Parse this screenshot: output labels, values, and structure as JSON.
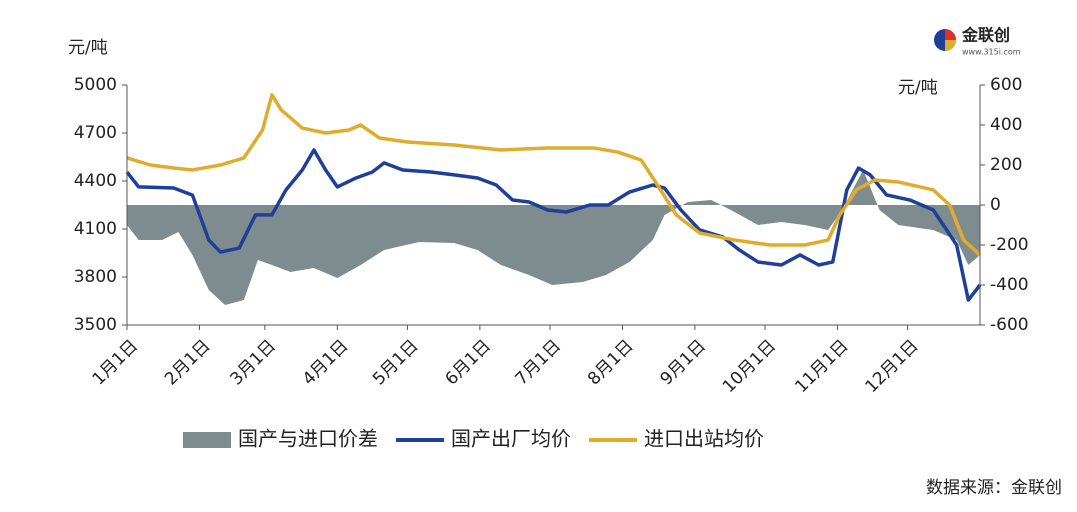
{
  "chart_data": {
    "type": "line",
    "ylabel": "元/吨",
    "y2label": "元/吨",
    "xlim": [
      0,
      365
    ],
    "xticks": [
      {
        "value": 0,
        "label": "1月1日"
      },
      {
        "value": 31,
        "label": "2月1日"
      },
      {
        "value": 59,
        "label": "3月1日"
      },
      {
        "value": 90,
        "label": "4月1日"
      },
      {
        "value": 120,
        "label": "5月1日"
      },
      {
        "value": 151,
        "label": "6月1日"
      },
      {
        "value": 181,
        "label": "7月1日"
      },
      {
        "value": 212,
        "label": "8月1日"
      },
      {
        "value": 243,
        "label": "9月1日"
      },
      {
        "value": 273,
        "label": "10月1日"
      },
      {
        "value": 304,
        "label": "11月1日"
      },
      {
        "value": 334,
        "label": "12月1日"
      }
    ],
    "ylim": [
      3500,
      5000
    ],
    "yticks": [
      3500,
      3800,
      4100,
      4400,
      4700,
      5000
    ],
    "y2lim": [
      -600,
      600
    ],
    "y2ticks": [
      -600,
      -400,
      -200,
      0,
      200,
      400,
      600
    ],
    "series": [
      {
        "name": "国产与进口价差",
        "color": "#7f8c8f",
        "axis": "y2",
        "kind": "area",
        "x": [
          0,
          5,
          15,
          22,
          28,
          35,
          42,
          50,
          56,
          62,
          70,
          80,
          90,
          100,
          110,
          125,
          140,
          150,
          160,
          172,
          182,
          195,
          205,
          215,
          225,
          230,
          240,
          250,
          260,
          270,
          280,
          290,
          300,
          306,
          315,
          322,
          330,
          345,
          355,
          360,
          365
        ],
        "values": [
          -100,
          -175,
          -175,
          -135,
          -250,
          -425,
          -500,
          -475,
          -275,
          -300,
          -335,
          -315,
          -365,
          -300,
          -225,
          -185,
          -190,
          -225,
          -300,
          -350,
          -400,
          -385,
          -350,
          -285,
          -175,
          -50,
          15,
          25,
          -35,
          -100,
          -85,
          -100,
          -125,
          -25,
          175,
          -25,
          -100,
          -125,
          -175,
          -300,
          -250
        ]
      },
      {
        "name": "国产出厂均价",
        "color": "#1f3f99",
        "kind": "line",
        "x": [
          0,
          5,
          20,
          28,
          35,
          40,
          48,
          55,
          62,
          68,
          75,
          80,
          85,
          90,
          98,
          105,
          110,
          118,
          130,
          140,
          150,
          158,
          165,
          172,
          180,
          188,
          198,
          206,
          215,
          225,
          230,
          237,
          245,
          255,
          262,
          270,
          280,
          288,
          296,
          302,
          308,
          313,
          318,
          325,
          335,
          345,
          355,
          360,
          365
        ],
        "values": [
          4456,
          4363,
          4356,
          4312,
          4031,
          3956,
          3981,
          4188,
          4188,
          4344,
          4469,
          4594,
          4469,
          4363,
          4419,
          4456,
          4513,
          4469,
          4456,
          4438,
          4419,
          4375,
          4281,
          4269,
          4219,
          4206,
          4250,
          4250,
          4331,
          4375,
          4356,
          4219,
          4094,
          4050,
          3969,
          3894,
          3875,
          3938,
          3875,
          3894,
          4344,
          4481,
          4438,
          4313,
          4281,
          4219,
          4000,
          3656,
          3750
        ]
      },
      {
        "name": "进口出站均价",
        "color": "#e0ac2c",
        "kind": "line",
        "x": [
          0,
          10,
          20,
          28,
          40,
          50,
          58,
          62,
          66,
          75,
          85,
          95,
          100,
          108,
          120,
          140,
          160,
          180,
          200,
          210,
          220,
          227,
          235,
          245,
          260,
          275,
          290,
          300,
          305,
          312,
          320,
          330,
          345,
          352,
          358,
          365
        ],
        "values": [
          4544,
          4500,
          4481,
          4469,
          4500,
          4544,
          4719,
          4938,
          4844,
          4731,
          4700,
          4719,
          4750,
          4669,
          4644,
          4625,
          4594,
          4606,
          4606,
          4581,
          4531,
          4375,
          4188,
          4075,
          4031,
          4000,
          4000,
          4031,
          4188,
          4344,
          4406,
          4394,
          4344,
          4250,
          4031,
          3938
        ]
      }
    ]
  },
  "logo": {
    "name": "金联创",
    "url": "www.315i.com"
  },
  "source": "数据来源：金联创"
}
